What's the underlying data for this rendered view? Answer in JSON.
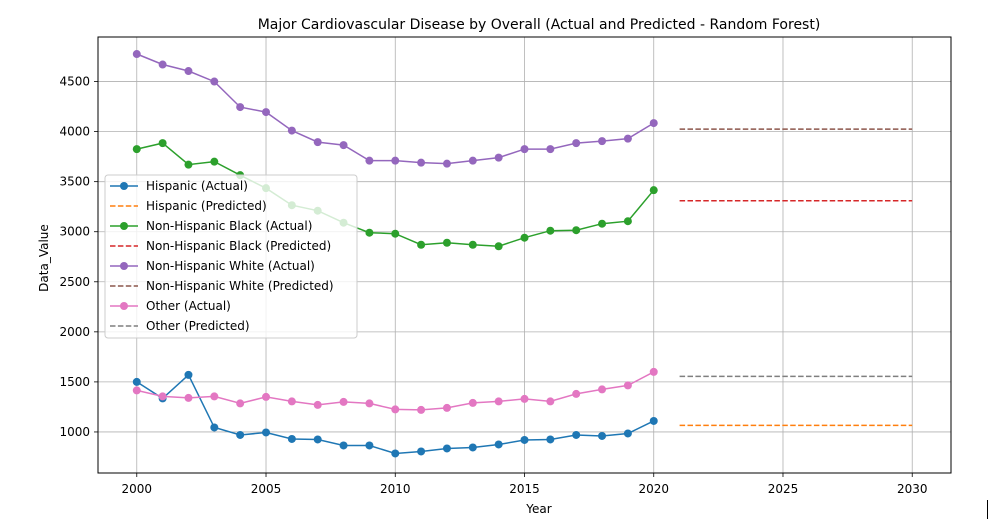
{
  "chart_data": {
    "type": "line",
    "title": "Major Cardiovascular Disease by Overall (Actual and Predicted - Random Forest)",
    "xlabel": "Year",
    "ylabel": "Data_Value",
    "xlim": [
      1998.5,
      2031.5
    ],
    "ylim": [
      590,
      4945
    ],
    "xticks": [
      2000,
      2005,
      2010,
      2015,
      2020,
      2025,
      2030
    ],
    "yticks": [
      1000,
      1500,
      2000,
      2500,
      3000,
      3500,
      4000,
      4500
    ],
    "grid": true,
    "legend_position": "center-left",
    "x_actual": [
      2000,
      2001,
      2002,
      2003,
      2004,
      2005,
      2006,
      2007,
      2008,
      2009,
      2010,
      2011,
      2012,
      2013,
      2014,
      2015,
      2016,
      2017,
      2018,
      2019,
      2020
    ],
    "x_predicted": [
      2021,
      2030
    ],
    "series": [
      {
        "name": "Hispanic (Actual)",
        "kind": "actual",
        "color": "#1f77b4",
        "values": [
          1500,
          1335,
          1570,
          1045,
          970,
          995,
          930,
          925,
          865,
          865,
          785,
          805,
          835,
          845,
          875,
          920,
          925,
          970,
          960,
          985,
          1110
        ]
      },
      {
        "name": "Hispanic (Predicted)",
        "kind": "predicted",
        "color": "#ff7f0e",
        "values": [
          1065,
          1065
        ]
      },
      {
        "name": "Non-Hispanic Black (Actual)",
        "kind": "actual",
        "color": "#2ca02c",
        "values": [
          3825,
          3885,
          3670,
          3700,
          3565,
          3435,
          3265,
          3210,
          3090,
          2990,
          2980,
          2870,
          2890,
          2870,
          2855,
          2940,
          3010,
          3015,
          3080,
          3105,
          3415
        ]
      },
      {
        "name": "Non-Hispanic Black (Predicted)",
        "kind": "predicted",
        "color": "#d62728",
        "values": [
          3310,
          3310
        ]
      },
      {
        "name": "Non-Hispanic White (Actual)",
        "kind": "actual",
        "color": "#9467bd",
        "values": [
          4775,
          4670,
          4605,
          4500,
          4245,
          4195,
          4010,
          3895,
          3865,
          3710,
          3710,
          3690,
          3680,
          3710,
          3740,
          3825,
          3825,
          3885,
          3905,
          3930,
          4085
        ]
      },
      {
        "name": "Non-Hispanic White (Predicted)",
        "kind": "predicted",
        "color": "#8c564b",
        "values": [
          4025,
          4025
        ]
      },
      {
        "name": "Other (Actual)",
        "kind": "actual",
        "color": "#e377c2",
        "values": [
          1415,
          1355,
          1340,
          1355,
          1285,
          1350,
          1305,
          1270,
          1300,
          1285,
          1225,
          1220,
          1240,
          1290,
          1305,
          1330,
          1305,
          1380,
          1425,
          1465,
          1600
        ]
      },
      {
        "name": "Other (Predicted)",
        "kind": "predicted",
        "color": "#7f7f7f",
        "values": [
          1555,
          1555
        ]
      }
    ]
  }
}
